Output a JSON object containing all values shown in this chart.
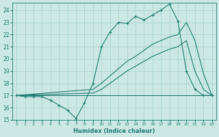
{
  "xlabel": "Humidex (Indice chaleur)",
  "bg_color": "#cce8e4",
  "grid_color": "#aad4cf",
  "line_color": "#1a7a6e",
  "xlim": [
    -0.5,
    23.5
  ],
  "ylim": [
    15,
    24.6
  ],
  "yticks": [
    15,
    16,
    17,
    18,
    19,
    20,
    21,
    22,
    23,
    24
  ],
  "xticks": [
    0,
    1,
    2,
    3,
    4,
    5,
    6,
    7,
    8,
    9,
    10,
    11,
    12,
    13,
    14,
    15,
    16,
    17,
    18,
    19,
    20,
    21,
    22,
    23
  ],
  "line1_x": [
    0,
    1,
    2,
    3,
    4,
    5,
    6,
    7,
    8,
    9,
    10,
    11,
    12,
    13,
    14,
    15,
    16,
    17,
    18,
    19,
    20,
    21,
    22,
    23
  ],
  "line1_y": [
    17.0,
    16.9,
    16.9,
    16.9,
    16.6,
    16.2,
    15.8,
    15.1,
    16.4,
    18.0,
    21.0,
    22.2,
    23.0,
    22.9,
    23.5,
    23.2,
    23.6,
    24.0,
    24.5,
    23.1,
    19.0,
    17.5,
    17.0,
    17.0
  ],
  "line2_x": [
    0,
    18,
    19,
    20,
    21,
    22,
    23
  ],
  "line2_y": [
    17.0,
    17.0,
    17.0,
    17.0,
    17.0,
    17.0,
    17.0
  ],
  "line3_x": [
    0,
    9,
    10,
    11,
    12,
    13,
    14,
    15,
    16,
    17,
    18,
    19,
    20,
    21,
    22,
    23
  ],
  "line3_y": [
    17.0,
    17.5,
    18.0,
    18.6,
    19.2,
    19.8,
    20.2,
    20.7,
    21.2,
    21.5,
    21.8,
    22.0,
    23.0,
    21.5,
    18.8,
    17.0
  ],
  "line4_x": [
    0,
    9,
    10,
    11,
    12,
    13,
    14,
    15,
    16,
    17,
    18,
    19,
    20,
    21,
    22,
    23
  ],
  "line4_y": [
    17.0,
    17.2,
    17.5,
    18.0,
    18.5,
    19.0,
    19.4,
    19.8,
    20.2,
    20.5,
    20.8,
    21.0,
    21.5,
    19.0,
    17.5,
    17.0
  ]
}
